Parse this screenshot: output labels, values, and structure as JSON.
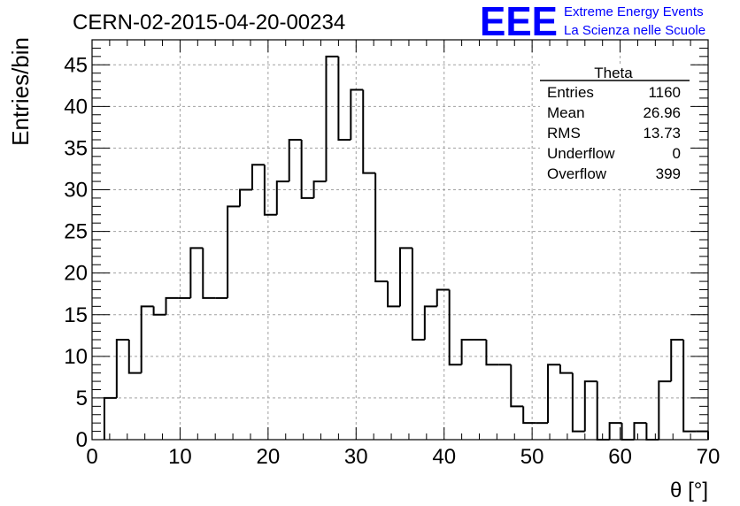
{
  "header": {
    "run_title": "CERN-02-2015-04-20-00234",
    "logo_text": "EEE",
    "logo_line1": "Extreme Energy Events",
    "logo_line2": "La Scienza nelle Scuole",
    "brand_color": "#0000ff"
  },
  "stats_box": {
    "title": "Theta",
    "rows": [
      {
        "label": "Entries",
        "value": "1160"
      },
      {
        "label": "Mean",
        "value": "26.96"
      },
      {
        "label": "RMS",
        "value": "13.73"
      },
      {
        "label": "Underflow",
        "value": "0"
      },
      {
        "label": "Overflow",
        "value": "399"
      }
    ]
  },
  "chart_data": {
    "type": "bar",
    "title": "CERN-02-2015-04-20-00234",
    "xlabel": "θ [°]",
    "ylabel": "Entries/bin",
    "xlim": [
      0,
      70
    ],
    "ylim": [
      0,
      48
    ],
    "xticks": [
      0,
      10,
      20,
      30,
      40,
      50,
      60,
      70
    ],
    "yticks": [
      0,
      5,
      10,
      15,
      20,
      25,
      30,
      35,
      40,
      45
    ],
    "grid": true,
    "bin_width": 1.4,
    "bin_start": 1.4,
    "values": [
      5,
      12,
      8,
      16,
      15,
      17,
      17,
      23,
      17,
      17,
      28,
      30,
      33,
      27,
      31,
      36,
      29,
      31,
      46,
      36,
      42,
      32,
      19,
      16,
      23,
      12,
      16,
      18,
      9,
      12,
      12,
      9,
      9,
      4,
      2,
      2,
      9,
      8,
      1,
      7,
      0,
      2,
      0,
      2,
      0,
      7,
      12,
      1,
      1
    ]
  }
}
